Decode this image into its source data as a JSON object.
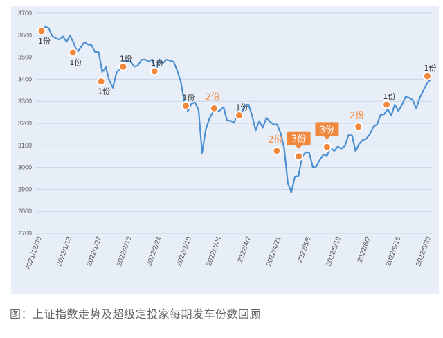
{
  "caption": "图：上证指数走势及超级定投家每期发车份数回顾",
  "colors": {
    "panel_bg": "#e8eef7",
    "line": "#4a90d2",
    "marker": "#f0883e",
    "grid": "#c9d4e5",
    "dark_label": "#333333",
    "orange_label": "#f0883e",
    "box_fill": "#f0883e"
  },
  "chart_data": {
    "type": "line",
    "title": "",
    "xlabel": "",
    "ylabel": "",
    "ylim": [
      2700,
      3700
    ],
    "yticks": [
      2700,
      2800,
      2900,
      3000,
      3100,
      3200,
      3300,
      3400,
      3500,
      3600,
      3700
    ],
    "grid": true,
    "x_tick_labels": [
      "2021/12/30",
      "2022/1/13",
      "2022/1/27",
      "2022/2/10",
      "2022/2/24",
      "2022/3/10",
      "2022/3/24",
      "2022/4/7",
      "2022/4/21",
      "2022/5/5",
      "2022/5/19",
      "2022/6/2",
      "2022/6/16",
      "2022/6/30"
    ],
    "series": [
      {
        "values": [
          3619,
          3639,
          3632,
          3595,
          3586,
          3580,
          3594,
          3570,
          3598,
          3565,
          3521,
          3545,
          3569,
          3558,
          3555,
          3524,
          3523,
          3433,
          3455,
          3394,
          3361,
          3430,
          3448,
          3482,
          3485,
          3479,
          3457,
          3462,
          3488,
          3490,
          3480,
          3490,
          3436,
          3490,
          3473,
          3489,
          3485,
          3480,
          3440,
          3390,
          3300,
          3255,
          3290,
          3295,
          3260,
          3065,
          3170,
          3220,
          3250,
          3255,
          3258,
          3273,
          3212,
          3212,
          3202,
          3256,
          3243,
          3282,
          3286,
          3236,
          3168,
          3210,
          3180,
          3225,
          3208,
          3195,
          3194,
          3156,
          3086,
          2929,
          2886,
          2958,
          2961,
          3047,
          3068,
          3067,
          3001,
          3004,
          3035,
          3058,
          3053,
          3089,
          3074,
          3094,
          3085,
          3097,
          3146,
          3145,
          3073,
          3106,
          3124,
          3130,
          3150,
          3185,
          3195,
          3238,
          3241,
          3264,
          3236,
          3285,
          3256,
          3285,
          3320,
          3316,
          3306,
          3267,
          3316,
          3350,
          3380,
          3399
        ]
      }
    ],
    "annotations": [
      {
        "label": "1份",
        "value": 3619,
        "index": 0,
        "style": "dark"
      },
      {
        "label": "1份",
        "value": 3521,
        "index": 10,
        "style": "dark"
      },
      {
        "label": "1份",
        "value": 3390,
        "index": 19,
        "style": "dark"
      },
      {
        "label": "1份",
        "value": 3457,
        "index": 26,
        "style": "dark"
      },
      {
        "label": "1份",
        "value": 3436,
        "index": 36,
        "style": "dark"
      },
      {
        "label": "1份",
        "value": 3280,
        "index": 46,
        "style": "dark"
      },
      {
        "label": "2份",
        "value": 3268,
        "index": 55,
        "style": "orange"
      },
      {
        "label": "1份",
        "value": 3236,
        "index": 63,
        "style": "dark"
      },
      {
        "label": "2份",
        "value": 3075,
        "index": 75,
        "style": "orange"
      },
      {
        "label": "3份",
        "value": 3050,
        "index": 82,
        "style": "box"
      },
      {
        "label": "3份",
        "value": 3092,
        "index": 91,
        "style": "box"
      },
      {
        "label": "2份",
        "value": 3185,
        "index": 101,
        "style": "orange"
      },
      {
        "label": "1份",
        "value": 3285,
        "index": 110,
        "style": "dark"
      },
      {
        "label": "1份",
        "value": 3414,
        "index": 123,
        "style": "dark"
      }
    ]
  }
}
